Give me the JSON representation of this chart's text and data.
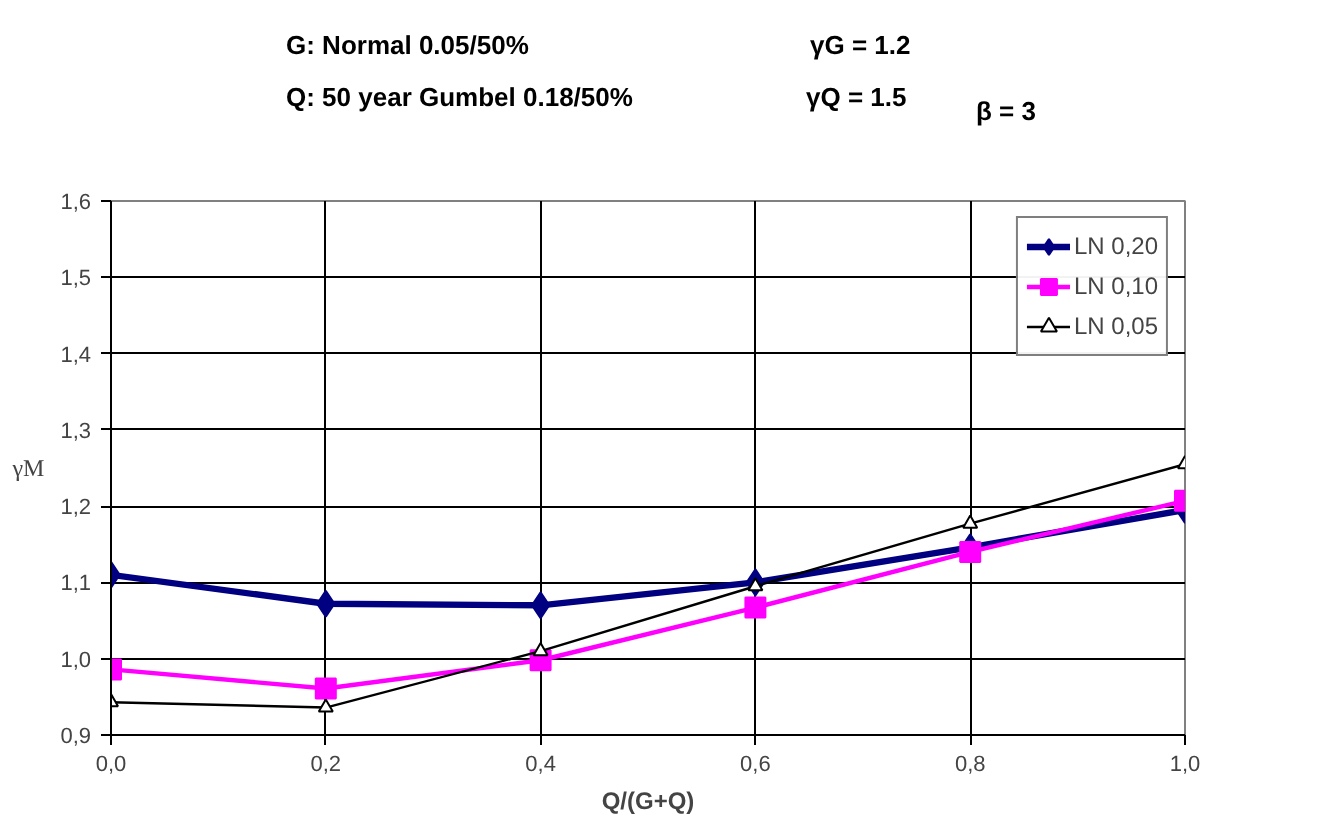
{
  "chart_data": {
    "type": "line",
    "xlabel": "Q/(G+Q)",
    "ylabel": "γM",
    "annotations": [
      "G: Normal 0.05/50%",
      "γG = 1.2",
      "Q: 50 year Gumbel 0.18/50%",
      "γQ = 1.5",
      "β = 3"
    ],
    "x": [
      0.0,
      0.2,
      0.4,
      0.6,
      0.8,
      1.0
    ],
    "series": [
      {
        "name": "LN 0,20",
        "color": "#000080",
        "marker": "diamond",
        "values": [
          1.11,
          1.072,
          1.07,
          1.1,
          1.146,
          1.195
        ]
      },
      {
        "name": "LN 0,10",
        "color": "#ff00ff",
        "marker": "square",
        "values": [
          0.986,
          0.961,
          0.998,
          1.067,
          1.14,
          1.207
        ]
      },
      {
        "name": "LN 0,05",
        "color": "#000000",
        "marker": "triangle",
        "values": [
          0.943,
          0.936,
          1.01,
          1.095,
          1.177,
          1.255
        ]
      }
    ],
    "xlim": [
      0.0,
      1.0
    ],
    "ylim": [
      0.9,
      1.6
    ],
    "xticks": [
      {
        "value": 0.0,
        "label": "0,0"
      },
      {
        "value": 0.2,
        "label": "0,2"
      },
      {
        "value": 0.4,
        "label": "0,4"
      },
      {
        "value": 0.6,
        "label": "0,6"
      },
      {
        "value": 0.8,
        "label": "0,8"
      },
      {
        "value": 1.0,
        "label": "1,0"
      }
    ],
    "yticks": [
      {
        "value": 0.9,
        "label": "0,9"
      },
      {
        "value": 1.0,
        "label": "1,0"
      },
      {
        "value": 1.1,
        "label": "1,1"
      },
      {
        "value": 1.2,
        "label": "1,2"
      },
      {
        "value": 1.3,
        "label": "1,3"
      },
      {
        "value": 1.4,
        "label": "1,4"
      },
      {
        "value": 1.5,
        "label": "1,5"
      },
      {
        "value": 1.6,
        "label": "1,6"
      }
    ],
    "grid": true,
    "legend": "top right"
  }
}
